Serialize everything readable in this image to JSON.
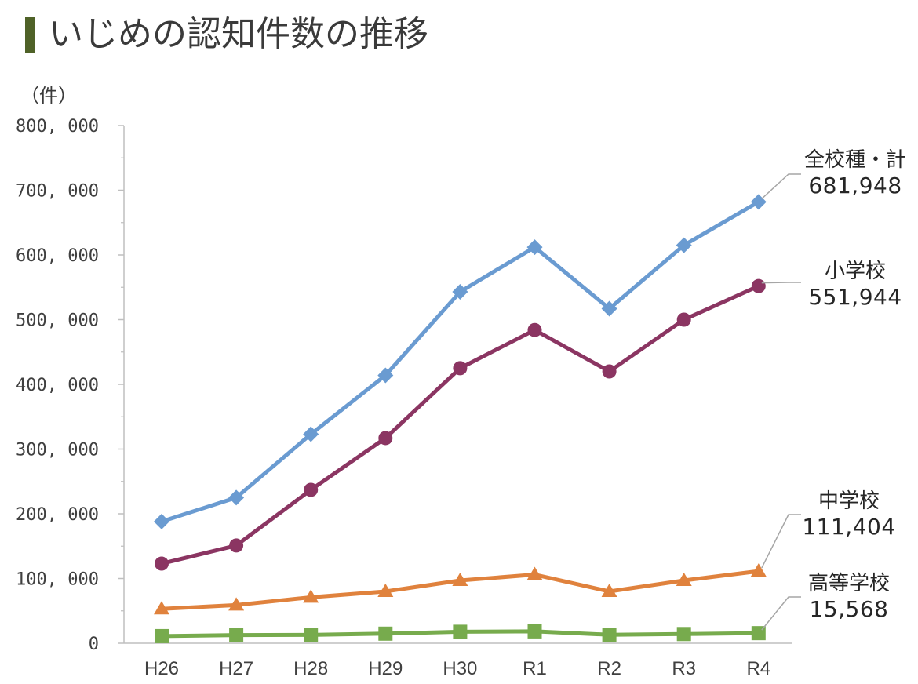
{
  "header": {
    "title": "いじめの認知件数の推移",
    "accent_color": "#4f6228",
    "unit_label": "（件）"
  },
  "chart_data": {
    "type": "line",
    "title": "いじめの認知件数の推移",
    "xlabel": "",
    "ylabel": "（件）",
    "categories": [
      "H26",
      "H27",
      "H28",
      "H29",
      "H30",
      "R1",
      "R2",
      "R3",
      "R4"
    ],
    "y_ticks": [
      "0",
      "100, 000",
      "200, 000",
      "300, 000",
      "400, 000",
      "500, 000",
      "600, 000",
      "700, 000",
      "800, 000"
    ],
    "ylim": [
      0,
      800000
    ],
    "grid": false,
    "series": [
      {
        "name": "全校種・計",
        "end_label": "681,948",
        "color": "#6a9bd1",
        "marker": "diamond",
        "values": [
          188000,
          225000,
          323000,
          414000,
          543000,
          612000,
          517000,
          615000,
          681948
        ]
      },
      {
        "name": "小学校",
        "end_label": "551,944",
        "color": "#8b3562",
        "marker": "circle",
        "values": [
          123000,
          151000,
          237000,
          317000,
          425000,
          484000,
          420000,
          500000,
          551944
        ]
      },
      {
        "name": "中学校",
        "end_label": "111,404",
        "color": "#e0823d",
        "marker": "triangle",
        "values": [
          53000,
          59000,
          71000,
          80000,
          97000,
          106000,
          80000,
          97000,
          111404
        ]
      },
      {
        "name": "高等学校",
        "end_label": "15,568",
        "color": "#77ab4d",
        "marker": "square",
        "values": [
          11000,
          12600,
          12900,
          14800,
          17700,
          18300,
          13100,
          14200,
          15568
        ]
      }
    ]
  }
}
